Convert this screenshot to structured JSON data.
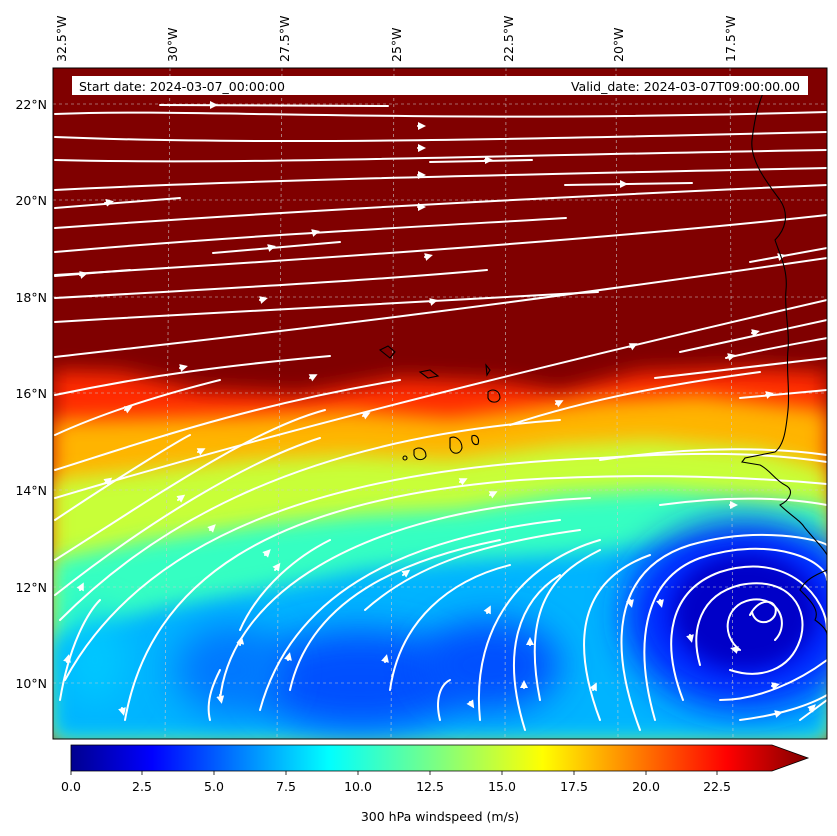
{
  "map": {
    "start_label": "Start date: 2024-03-07_00:00:00",
    "valid_label": "Valid_date: 2024-03-07T09:00:00.00",
    "lon_ticks": [
      "32.5°W",
      "30°W",
      "27.5°W",
      "25°W",
      "22.5°W",
      "20°W",
      "17.5°W"
    ],
    "lat_ticks": [
      "22°N",
      "20°N",
      "18°N",
      "16°N",
      "14°N",
      "12°N",
      "10°N"
    ],
    "lon_range_deg": [
      -32.5,
      -15.0
    ],
    "lat_range_deg": [
      8.9,
      22.8
    ]
  },
  "colorbar": {
    "label": "300 hPa windspeed (m/s)",
    "ticks": [
      "0.0",
      "2.5",
      "5.0",
      "7.5",
      "10.0",
      "12.5",
      "15.0",
      "17.5",
      "20.0",
      "22.5"
    ],
    "range": [
      0,
      25
    ],
    "extend": "max"
  },
  "colors": {
    "high_speed": "#800000",
    "low_speed": "#00008f",
    "streamline": "#ffffff",
    "coastline": "#000000"
  }
}
